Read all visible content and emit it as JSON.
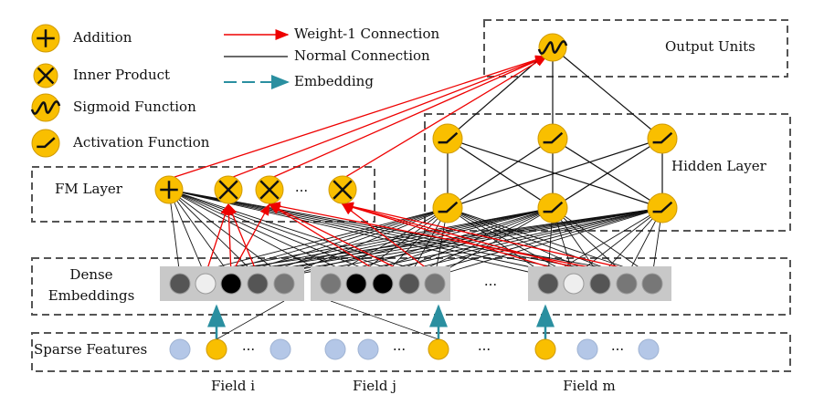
{
  "legend": {
    "addition": "Addition",
    "inner_product": "Inner Product",
    "sigmoid": "Sigmoid Function",
    "activation": "Activation Function",
    "weight1": "Weight-1 Connection",
    "normal": "Normal Connection",
    "embedding": "Embedding"
  },
  "output": {
    "label": "Output Units"
  },
  "hidden": {
    "label": "Hidden Layer"
  },
  "fm": {
    "label": "FM Layer",
    "ellipsis": "···"
  },
  "dense": {
    "label_lines": [
      "Dense",
      "Embeddings"
    ],
    "ellipsis": "···"
  },
  "sparse": {
    "label": "Sparse Features",
    "ellipses": [
      "···",
      "···",
      "···",
      "···"
    ]
  },
  "fields": [
    "Field i",
    "Field j",
    "Field m"
  ]
}
